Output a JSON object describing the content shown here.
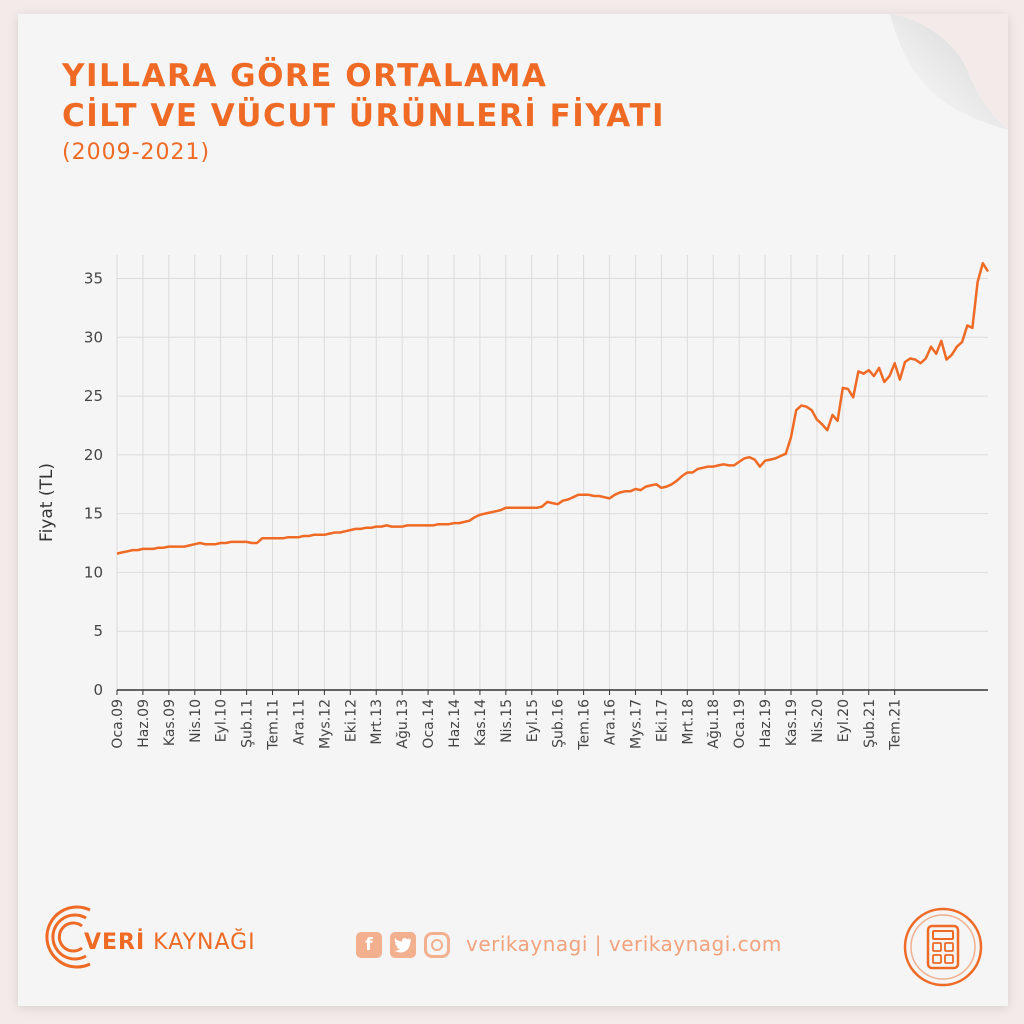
{
  "header": {
    "title_line1": "YILLARA GÖRE ORTALAMA",
    "title_line2": "CİLT VE VÜCUT ÜRÜNLERİ FİYATI",
    "subtitle": "(2009-2021)"
  },
  "footer": {
    "brand_prefix": "VERİ",
    "brand_suffix": " KAYNAĞI",
    "social_handle": "verikaynagi | verikaynagi.com"
  },
  "colors": {
    "accent": "#ef6a25",
    "grid": "#dcdcdc",
    "axis": "#333333",
    "social": "#f2b08f"
  },
  "icons": [
    "veri-kaynagi-logo-icon",
    "facebook-icon",
    "twitter-icon",
    "instagram-icon",
    "calculator-icon"
  ],
  "chart_data": {
    "type": "line",
    "title": "YILLARA GÖRE ORTALAMA CİLT VE VÜCUT ÜRÜNLERİ FİYATI",
    "subtitle": "(2009-2021)",
    "xlabel": "",
    "ylabel": "Fiyat (TL)",
    "ylim": [
      0,
      37
    ],
    "yticks": [
      0,
      5,
      10,
      15,
      20,
      25,
      30,
      35
    ],
    "grid": true,
    "legend": "none",
    "xtick_labels": [
      "Oca.09",
      "Haz.09",
      "Kas.09",
      "Nis.10",
      "Eyl.10",
      "Şub.11",
      "Tem.11",
      "Ara.11",
      "Mys.12",
      "Eki.12",
      "Mrt.13",
      "Ağu.13",
      "Oca.14",
      "Haz.14",
      "Kas.14",
      "Nis.15",
      "Eyl.15",
      "Şub.16",
      "Tem.16",
      "Ara.16",
      "Mys.17",
      "Eki.17",
      "Mrt.18",
      "Ağu.18",
      "Oca.19",
      "Haz.19",
      "Kas.19",
      "Nis.20",
      "Eyl.20",
      "Şub.21",
      "Tem.21"
    ],
    "x_start": "2009-01",
    "series": [
      {
        "values": [
          11.6,
          11.7,
          11.8,
          11.9,
          11.9,
          12.0,
          12.0,
          12.0,
          12.1,
          12.1,
          12.2,
          12.2,
          12.2,
          12.2,
          12.3,
          12.4,
          12.5,
          12.4,
          12.4,
          12.4,
          12.5,
          12.5,
          12.6,
          12.6,
          12.6,
          12.6,
          12.5,
          12.5,
          12.9,
          12.9,
          12.9,
          12.9,
          12.9,
          13.0,
          13.0,
          13.0,
          13.1,
          13.1,
          13.2,
          13.2,
          13.2,
          13.3,
          13.4,
          13.4,
          13.5,
          13.6,
          13.7,
          13.7,
          13.8,
          13.8,
          13.9,
          13.9,
          14.0,
          13.9,
          13.9,
          13.9,
          14.0,
          14.0,
          14.0,
          14.0,
          14.0,
          14.0,
          14.1,
          14.1,
          14.1,
          14.2,
          14.2,
          14.3,
          14.4,
          14.7,
          14.9,
          15.0,
          15.1,
          15.2,
          15.3,
          15.5,
          15.5,
          15.5,
          15.5,
          15.5,
          15.5,
          15.5,
          15.6,
          16.0,
          15.9,
          15.8,
          16.1,
          16.2,
          16.4,
          16.6,
          16.6,
          16.6,
          16.5,
          16.5,
          16.4,
          16.3,
          16.6,
          16.8,
          16.9,
          16.9,
          17.1,
          17.0,
          17.3,
          17.4,
          17.5,
          17.2,
          17.3,
          17.5,
          17.8,
          18.2,
          18.5,
          18.5,
          18.8,
          18.9,
          19.0,
          19.0,
          19.1,
          19.2,
          19.1,
          19.1,
          19.4,
          19.7,
          19.8,
          19.6,
          19.0,
          19.5,
          19.6,
          19.7,
          19.9,
          20.1,
          21.5,
          23.8,
          24.2,
          24.1,
          23.8,
          23.0,
          22.6,
          22.1,
          23.4,
          22.9,
          25.7,
          25.6,
          24.9,
          27.1,
          26.9,
          27.2,
          26.7,
          27.4,
          26.2,
          26.7,
          27.8,
          26.4,
          27.9,
          28.2,
          28.1,
          27.8,
          28.2,
          29.2,
          28.6,
          29.7,
          28.1,
          28.5,
          29.2,
          29.6,
          31.0,
          30.8,
          34.7,
          36.3,
          35.6
        ]
      }
    ]
  }
}
